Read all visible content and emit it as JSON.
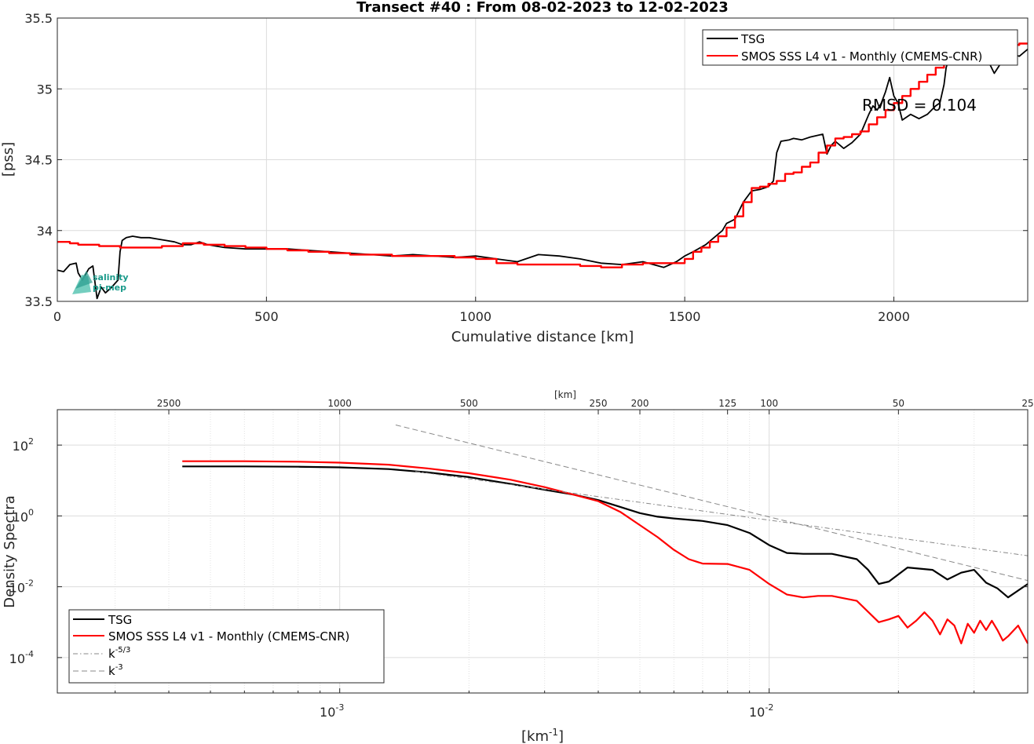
{
  "logo": {
    "line1": "salinity",
    "line2": "pi-mep"
  },
  "chart_data": [
    {
      "type": "line",
      "title": "Transect #40 : From 08-02-2023 to 12-02-2023",
      "xlabel": "Cumulative distance [km]",
      "ylabel": "[pss]",
      "xlim": [
        0,
        2320
      ],
      "ylim": [
        33.5,
        35.5
      ],
      "xticks": [
        0,
        500,
        1000,
        1500,
        2000
      ],
      "yticks": [
        33.5,
        34,
        34.5,
        35,
        35.5
      ],
      "grid": true,
      "legend_position": "top-right",
      "annotation": "RMSD = 0.104",
      "series": [
        {
          "name": "TSG",
          "color": "#000000",
          "x": [
            0,
            15,
            30,
            45,
            50,
            60,
            75,
            85,
            95,
            100,
            105,
            115,
            130,
            145,
            150,
            155,
            165,
            180,
            200,
            220,
            240,
            260,
            280,
            300,
            320,
            340,
            360,
            380,
            400,
            450,
            500,
            550,
            600,
            650,
            700,
            750,
            800,
            850,
            900,
            950,
            1000,
            1050,
            1100,
            1150,
            1200,
            1250,
            1300,
            1350,
            1400,
            1450,
            1480,
            1500,
            1520,
            1550,
            1570,
            1590,
            1600,
            1620,
            1640,
            1660,
            1680,
            1700,
            1712,
            1720,
            1730,
            1750,
            1760,
            1780,
            1800,
            1830,
            1840,
            1850,
            1860,
            1880,
            1900,
            1920,
            1940,
            1950,
            1960,
            1970,
            1980,
            1990,
            2000,
            2010,
            2020,
            2030,
            2040,
            2060,
            2080,
            2100,
            2110,
            2120,
            2125,
            2130,
            2150,
            2180,
            2200,
            2220,
            2240,
            2260,
            2280,
            2300,
            2320
          ],
          "y": [
            33.72,
            33.71,
            33.76,
            33.77,
            33.7,
            33.65,
            33.73,
            33.75,
            33.52,
            33.56,
            33.6,
            33.56,
            33.6,
            33.65,
            33.85,
            33.93,
            33.95,
            33.96,
            33.95,
            33.95,
            33.94,
            33.93,
            33.92,
            33.9,
            33.9,
            33.92,
            33.9,
            33.89,
            33.88,
            33.87,
            33.87,
            33.87,
            33.86,
            33.85,
            33.84,
            33.83,
            33.82,
            33.83,
            33.82,
            33.81,
            33.82,
            33.8,
            33.78,
            33.83,
            33.82,
            33.8,
            33.77,
            33.76,
            33.78,
            33.74,
            33.78,
            33.82,
            33.85,
            33.9,
            33.95,
            34.0,
            34.05,
            34.08,
            34.2,
            34.28,
            34.29,
            34.31,
            34.35,
            34.55,
            34.63,
            34.64,
            34.65,
            34.64,
            34.66,
            34.68,
            34.54,
            34.6,
            34.63,
            34.58,
            34.62,
            34.68,
            34.82,
            34.88,
            34.85,
            34.9,
            34.98,
            35.08,
            34.95,
            34.9,
            34.78,
            34.8,
            34.82,
            34.79,
            34.82,
            34.88,
            34.9,
            35.03,
            35.15,
            35.2,
            35.28,
            35.22,
            35.26,
            35.23,
            35.11,
            35.2,
            35.25,
            35.23,
            35.28
          ]
        },
        {
          "name": "SMOS SSS L4 v1 - Monthly (CMEMS-CNR)",
          "color": "#ff0000",
          "step": true,
          "x": [
            0,
            30,
            50,
            100,
            150,
            200,
            250,
            300,
            350,
            400,
            450,
            500,
            550,
            600,
            650,
            700,
            750,
            800,
            850,
            900,
            950,
            1000,
            1050,
            1100,
            1150,
            1200,
            1250,
            1300,
            1350,
            1400,
            1450,
            1500,
            1520,
            1540,
            1560,
            1580,
            1600,
            1620,
            1640,
            1660,
            1680,
            1700,
            1720,
            1740,
            1760,
            1780,
            1800,
            1820,
            1840,
            1860,
            1880,
            1900,
            1920,
            1940,
            1960,
            1980,
            2000,
            2020,
            2040,
            2060,
            2080,
            2100,
            2120,
            2140,
            2160,
            2180,
            2200,
            2220,
            2240,
            2260,
            2280,
            2300,
            2320
          ],
          "y": [
            33.92,
            33.91,
            33.9,
            33.89,
            33.88,
            33.88,
            33.89,
            33.91,
            33.9,
            33.89,
            33.88,
            33.87,
            33.86,
            33.85,
            33.84,
            33.83,
            33.83,
            33.82,
            33.82,
            33.82,
            33.81,
            33.8,
            33.77,
            33.76,
            33.76,
            33.76,
            33.75,
            33.74,
            33.76,
            33.77,
            33.77,
            33.8,
            33.85,
            33.88,
            33.92,
            33.96,
            34.02,
            34.1,
            34.2,
            34.3,
            34.31,
            34.33,
            34.35,
            34.4,
            34.41,
            34.45,
            34.48,
            34.55,
            34.6,
            34.65,
            34.66,
            34.68,
            34.7,
            34.75,
            34.8,
            34.85,
            34.9,
            34.95,
            35.0,
            35.05,
            35.1,
            35.15,
            35.2,
            35.25,
            35.27,
            35.28,
            35.29,
            35.3,
            35.31,
            35.3,
            35.31,
            35.32,
            35.32
          ]
        }
      ]
    },
    {
      "type": "line",
      "title": "",
      "xlabel": "[km",
      "xlabel_sup": "-1",
      "xlabel_end": "]",
      "ylabel": "Density Spectra",
      "top_axis_label": "[km]",
      "x_scale": "log",
      "y_scale": "log",
      "xlim": [
        0.00022,
        0.04
      ],
      "ylim": [
        1e-05,
        1000
      ],
      "xticks": [
        0.001,
        0.01
      ],
      "xtick_labels": [
        {
          "base": "10",
          "exp": "-3"
        },
        {
          "base": "10",
          "exp": "-2"
        }
      ],
      "yticks": [
        0.0001,
        0.01,
        1,
        100
      ],
      "ytick_labels": [
        {
          "base": "10",
          "exp": "-4"
        },
        {
          "base": "10",
          "exp": "-2"
        },
        {
          "base": "10",
          "exp": "0"
        },
        {
          "base": "10",
          "exp": "2"
        }
      ],
      "top_ticks_km": [
        2500,
        1000,
        500,
        250,
        200,
        125,
        100,
        50,
        25
      ],
      "grid": true,
      "legend_position": "bottom-left",
      "legend": [
        {
          "name": "TSG",
          "color": "#000000",
          "style": "solid"
        },
        {
          "name": "SMOS SSS L4 v1 - Monthly (CMEMS-CNR)",
          "color": "#ff0000",
          "style": "solid"
        },
        {
          "name": "k",
          "sup": "-5/3",
          "color": "#888888",
          "style": "dashdot"
        },
        {
          "name": "k",
          "sup": "-3",
          "color": "#888888",
          "style": "dashed"
        }
      ],
      "series": [
        {
          "name": "TSG",
          "color": "#000000",
          "x": [
            0.00043,
            0.0006,
            0.0008,
            0.001,
            0.0013,
            0.0016,
            0.002,
            0.0025,
            0.003,
            0.0035,
            0.004,
            0.0045,
            0.005,
            0.0055,
            0.006,
            0.007,
            0.008,
            0.009,
            0.01,
            0.011,
            0.012,
            0.014,
            0.016,
            0.017,
            0.018,
            0.019,
            0.021,
            0.024,
            0.026,
            0.028,
            0.03,
            0.032,
            0.034,
            0.036,
            0.04
          ],
          "y": [
            25,
            25,
            24.5,
            23.5,
            21,
            17,
            12.5,
            8,
            5.5,
            4,
            2.8,
            1.8,
            1.2,
            0.95,
            0.85,
            0.72,
            0.55,
            0.33,
            0.15,
            0.09,
            0.085,
            0.085,
            0.06,
            0.03,
            0.012,
            0.014,
            0.035,
            0.03,
            0.016,
            0.025,
            0.03,
            0.013,
            0.009,
            0.005,
            0.012
          ]
        },
        {
          "name": "SMOS SSS L4 v1 - Monthly (CMEMS-CNR)",
          "color": "#ff0000",
          "x": [
            0.00043,
            0.0006,
            0.0008,
            0.001,
            0.0013,
            0.0016,
            0.002,
            0.0025,
            0.003,
            0.0035,
            0.004,
            0.0045,
            0.005,
            0.0055,
            0.006,
            0.0065,
            0.007,
            0.008,
            0.009,
            0.01,
            0.011,
            0.012,
            0.013,
            0.014,
            0.016,
            0.018,
            0.019,
            0.02,
            0.021,
            0.022,
            0.023,
            0.024,
            0.025,
            0.026,
            0.027,
            0.028,
            0.029,
            0.03,
            0.031,
            0.032,
            0.033,
            0.034,
            0.035,
            0.036,
            0.038,
            0.04
          ],
          "y": [
            35,
            35,
            34,
            32,
            28,
            22,
            16,
            10.5,
            6.5,
            4,
            2.6,
            1.3,
            0.55,
            0.25,
            0.11,
            0.06,
            0.045,
            0.044,
            0.03,
            0.012,
            0.006,
            0.005,
            0.0055,
            0.0055,
            0.004,
            0.001,
            0.0012,
            0.0015,
            0.0007,
            0.0011,
            0.0019,
            0.0011,
            0.00045,
            0.0012,
            0.0008,
            0.00025,
            0.0009,
            0.0005,
            0.0011,
            0.0006,
            0.0011,
            0.0006,
            0.0003,
            0.0004,
            0.0008,
            0.00025
          ]
        },
        {
          "name": "k",
          "sup": "-5/3",
          "color": "#888888",
          "style": "dashdot",
          "x": [
            0.0015,
            0.04
          ],
          "y": [
            18,
            0.075
          ]
        },
        {
          "name": "k",
          "sup": "-3",
          "color": "#888888",
          "style": "dashed",
          "x": [
            0.00135,
            0.04
          ],
          "y": [
            370,
            0.015
          ]
        }
      ]
    }
  ]
}
